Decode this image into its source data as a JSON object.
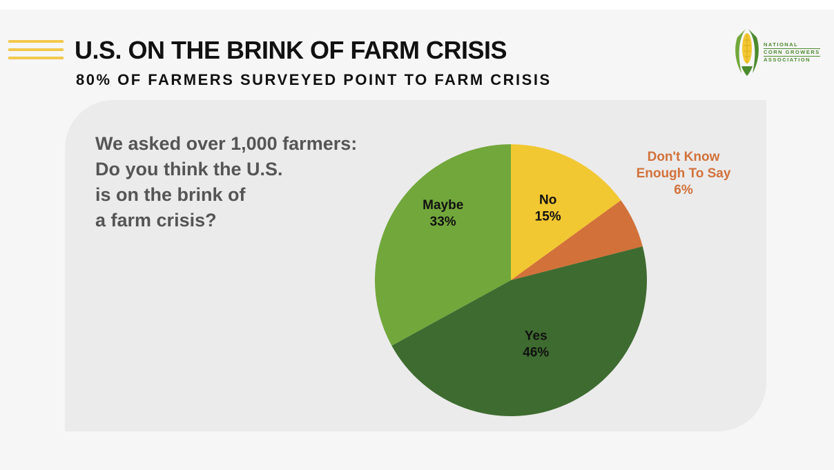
{
  "header": {
    "title": "U.S. ON THE BRINK OF FARM CRISIS",
    "subtitle": "80% OF FARMERS SURVEYED POINT TO FARM CRISIS"
  },
  "logo": {
    "lines": [
      "NATIONAL",
      "CORN GROWERS",
      "ASSOCIATION"
    ]
  },
  "question": {
    "lines": [
      "We asked over 1,000 farmers:",
      "Do you think the U.S.",
      "is on the brink of",
      "a farm crisis?"
    ]
  },
  "chart_data": {
    "type": "pie",
    "title": "",
    "slices": [
      {
        "label": "No",
        "value": 15,
        "display": "15%",
        "color": "#f2c832",
        "label_color": "#111111"
      },
      {
        "label": "Don't Know Enough To Say",
        "label_lines": [
          "Don't Know",
          "Enough To Say"
        ],
        "value": 6,
        "display": "6%",
        "color": "#d2713a",
        "label_color": "#d2713a"
      },
      {
        "label": "Yes",
        "value": 46,
        "display": "46%",
        "color": "#3e6b2f",
        "label_color": "#111111"
      },
      {
        "label": "Maybe",
        "value": 33,
        "display": "33%",
        "color": "#72a73c",
        "label_color": "#111111"
      }
    ],
    "start_angle": "12 o'clock",
    "direction": "clockwise",
    "legend": "none"
  },
  "colors": {
    "accent": "#f2c94c",
    "title": "#111111",
    "question_text": "#555555",
    "panel": "#ebebeb"
  }
}
